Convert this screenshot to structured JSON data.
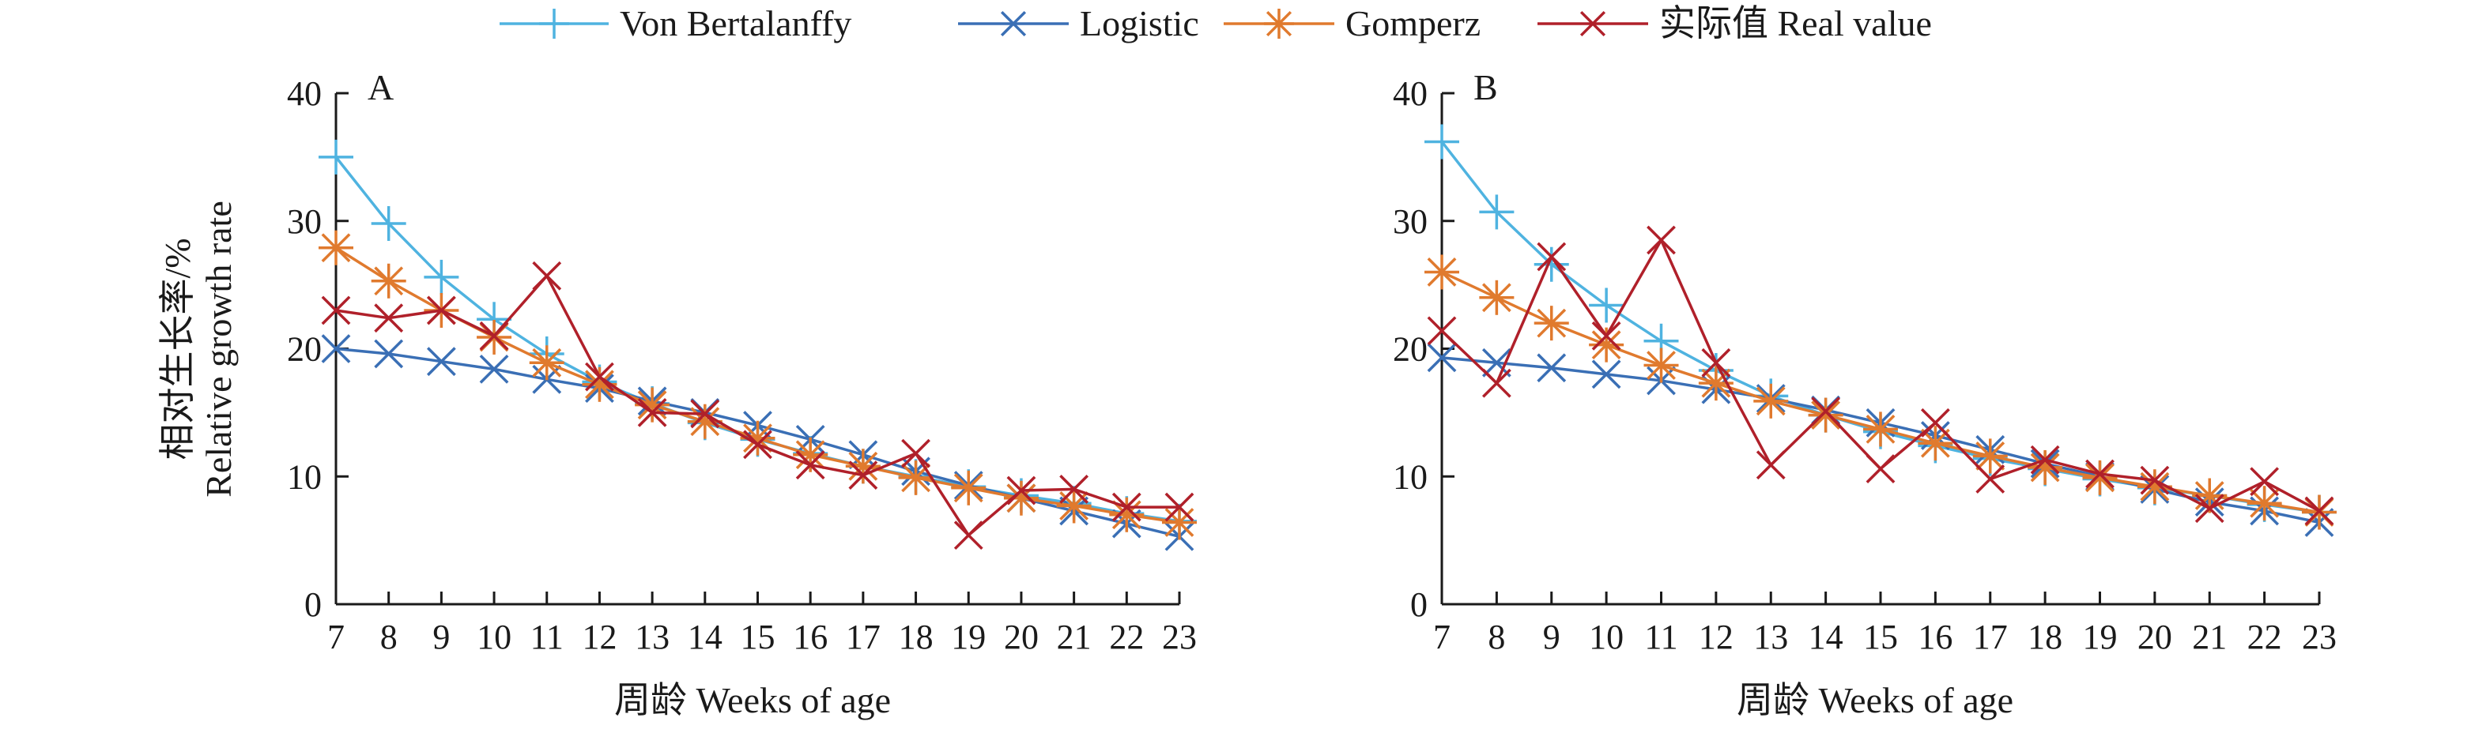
{
  "legend": {
    "entries": [
      {
        "label": "Von Bertalanffy",
        "color": "#4fb3e0",
        "marker": "plus"
      },
      {
        "label": "Logistic",
        "color": "#3a6fb5",
        "marker": "x"
      },
      {
        "label": "Gomperz",
        "color": "#e07a2e",
        "marker": "asterisk"
      },
      {
        "label": "实际值 Real value",
        "color": "#b0202a",
        "marker": "x"
      }
    ],
    "placement": "top-center"
  },
  "ylabel_cn": "相对生长率/%",
  "ylabel_en": "Relative growth rate",
  "xlabel": "周龄 Weeks of age",
  "chart_data": [
    {
      "type": "line",
      "panel_label": "A",
      "x": [
        7,
        8,
        9,
        10,
        11,
        12,
        13,
        14,
        15,
        16,
        17,
        18,
        19,
        20,
        21,
        22,
        23
      ],
      "xlim": [
        7,
        23
      ],
      "ylim": [
        0,
        40
      ],
      "yticks": [
        0,
        10,
        20,
        30,
        40
      ],
      "grid": false,
      "series": [
        {
          "name": "Von Bertalanffy",
          "values": [
            35.0,
            29.8,
            25.6,
            22.3,
            19.6,
            17.4,
            15.7,
            14.2,
            12.9,
            11.8,
            10.8,
            10.0,
            9.2,
            8.5,
            7.9,
            7.1,
            6.5
          ]
        },
        {
          "name": "Logistic",
          "values": [
            20.0,
            19.6,
            19.0,
            18.4,
            17.6,
            16.9,
            15.9,
            15.0,
            14.0,
            12.9,
            11.7,
            10.4,
            9.3,
            8.3,
            7.3,
            6.3,
            5.3
          ]
        },
        {
          "name": "Gomperz",
          "values": [
            27.9,
            25.3,
            23.0,
            20.9,
            18.9,
            17.2,
            15.6,
            14.3,
            13.0,
            11.7,
            10.8,
            9.9,
            9.1,
            8.3,
            7.7,
            7.0,
            6.4
          ]
        },
        {
          "name": "实际值 Real value",
          "values": [
            23.0,
            22.4,
            23.0,
            21.0,
            25.7,
            17.8,
            15.0,
            14.9,
            12.5,
            10.9,
            10.1,
            11.8,
            5.4,
            8.9,
            9.0,
            7.6,
            7.6
          ]
        }
      ]
    },
    {
      "type": "line",
      "panel_label": "B",
      "x": [
        7,
        8,
        9,
        10,
        11,
        12,
        13,
        14,
        15,
        16,
        17,
        18,
        19,
        20,
        21,
        22,
        23
      ],
      "xlim": [
        7,
        23
      ],
      "ylim": [
        0,
        40
      ],
      "yticks": [
        0,
        10,
        20,
        30,
        40
      ],
      "grid": false,
      "series": [
        {
          "name": "Von Bertalanffy",
          "values": [
            36.2,
            30.7,
            26.6,
            23.4,
            20.6,
            18.3,
            16.3,
            14.8,
            13.5,
            12.4,
            11.4,
            10.6,
            9.8,
            9.1,
            8.5,
            7.8,
            7.2
          ]
        },
        {
          "name": "Logistic",
          "values": [
            19.3,
            18.9,
            18.5,
            18.0,
            17.5,
            16.8,
            16.1,
            15.2,
            14.2,
            13.2,
            12.1,
            11.0,
            10.0,
            9.0,
            8.0,
            7.3,
            6.4
          ]
        },
        {
          "name": "Gomperz",
          "values": [
            26.0,
            24.0,
            22.0,
            20.3,
            18.7,
            17.3,
            15.9,
            14.8,
            13.7,
            12.6,
            11.6,
            10.7,
            9.9,
            9.2,
            8.5,
            7.9,
            7.2
          ]
        },
        {
          "name": "实际值 Real value",
          "values": [
            21.4,
            17.3,
            27.2,
            21.0,
            28.5,
            18.9,
            10.9,
            15.1,
            10.6,
            14.2,
            9.8,
            11.3,
            10.2,
            9.7,
            7.5,
            9.6,
            7.3
          ]
        }
      ]
    }
  ]
}
